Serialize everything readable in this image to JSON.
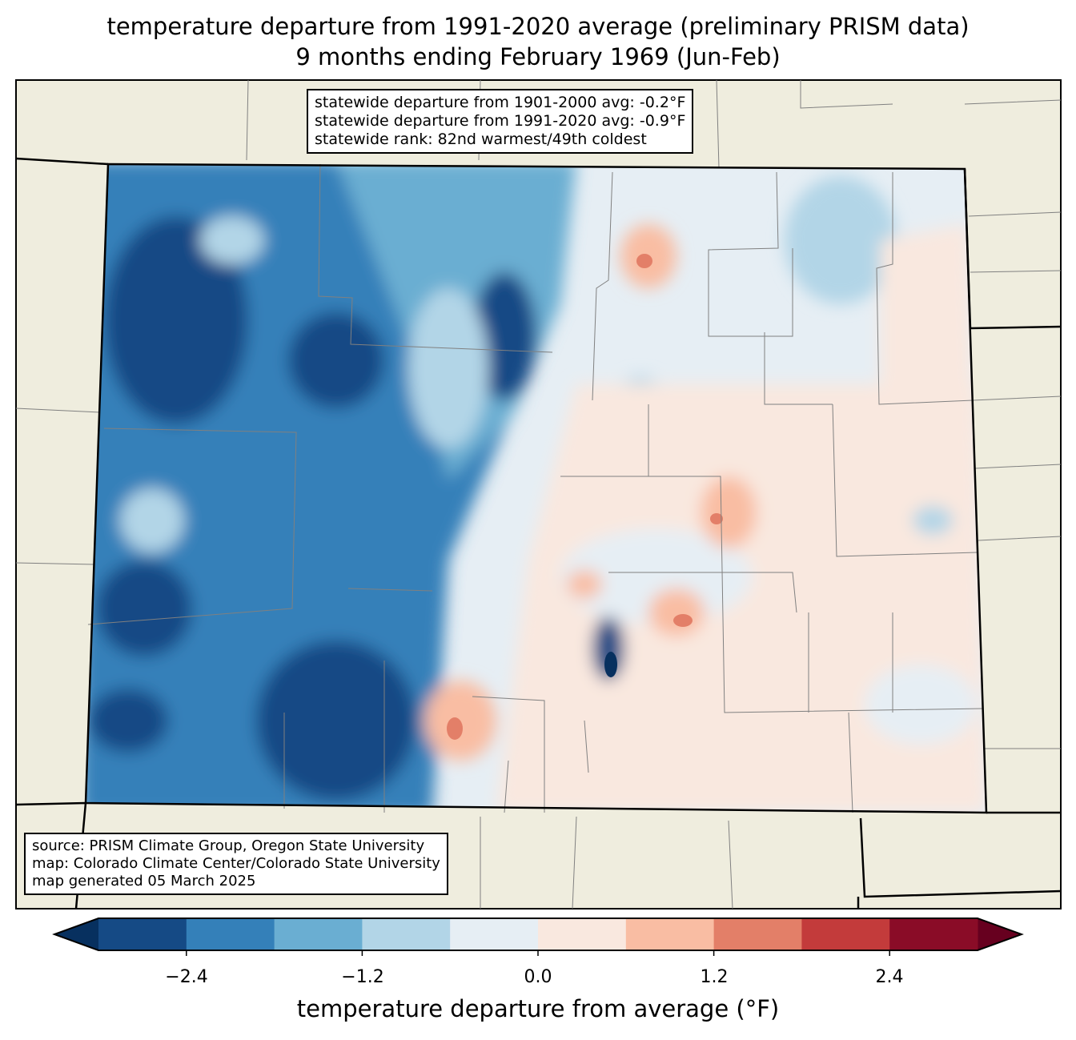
{
  "title": {
    "line1": "temperature departure from 1991-2020 average (preliminary PRISM data)",
    "line2": "9 months ending February 1969 (Jun-Feb)"
  },
  "stats_box": {
    "line1": "statewide departure from 1901-2000 avg: -0.2°F",
    "line2": "statewide departure from 1991-2020 avg: -0.9°F",
    "line3": "statewide rank: 82nd warmest/49th coldest"
  },
  "source_box": {
    "line1": "source: PRISM Climate Group, Oregon State University",
    "line2": "map: Colorado Climate Center/Colorado State University",
    "line3": "map generated 05 March 2025"
  },
  "colorbar": {
    "label": "temperature departure from average (°F)",
    "ticks": [
      "−2.4",
      "−1.2",
      "0.0",
      "1.2",
      "2.4"
    ],
    "levels": [
      -3.0,
      -2.4,
      -1.8,
      -1.2,
      -0.6,
      0.0,
      0.6,
      1.2,
      1.8,
      2.4,
      3.0
    ],
    "colors": [
      "#154a85",
      "#3480b9",
      "#6aaed2",
      "#b2d5e7",
      "#e6eef4",
      "#f9e8df",
      "#f9bda3",
      "#e37f68",
      "#c33b3b",
      "#8a0c27"
    ],
    "under_color": "#07305f",
    "over_color": "#67001f"
  },
  "map_colors": {
    "land": "#efedde",
    "border": "#000000",
    "county": "#808080"
  }
}
